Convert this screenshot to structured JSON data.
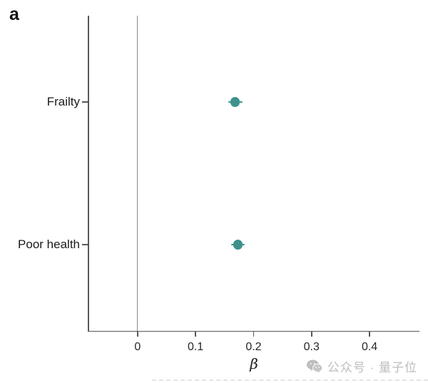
{
  "panel_label": "a",
  "colors": {
    "point": "#3e918d",
    "axis": "#595959",
    "zero_line": "#8c8c8c",
    "text": "#1a1a1a",
    "watermark": "#bdbdbd"
  },
  "watermark": {
    "icon": "wechat-icon",
    "text": "公众号 · 量子位"
  },
  "chart_data": {
    "type": "scatter",
    "orientation": "horizontal-dot-plot",
    "categories": [
      "Frailty",
      "Poor health"
    ],
    "values": [
      0.168,
      0.173
    ],
    "ci_low": [
      0.156,
      0.161
    ],
    "ci_high": [
      0.181,
      0.185
    ],
    "xlabel": "β",
    "xticks": [
      0,
      0.1,
      0.2,
      0.3,
      0.4
    ],
    "xtick_labels": [
      "0",
      "0.1",
      "0.2",
      "0.3",
      "0.4"
    ],
    "xlim": [
      -0.085,
      0.486
    ],
    "zero_line": 0,
    "grid": false,
    "legend": false,
    "point_color": "#3e918d"
  }
}
